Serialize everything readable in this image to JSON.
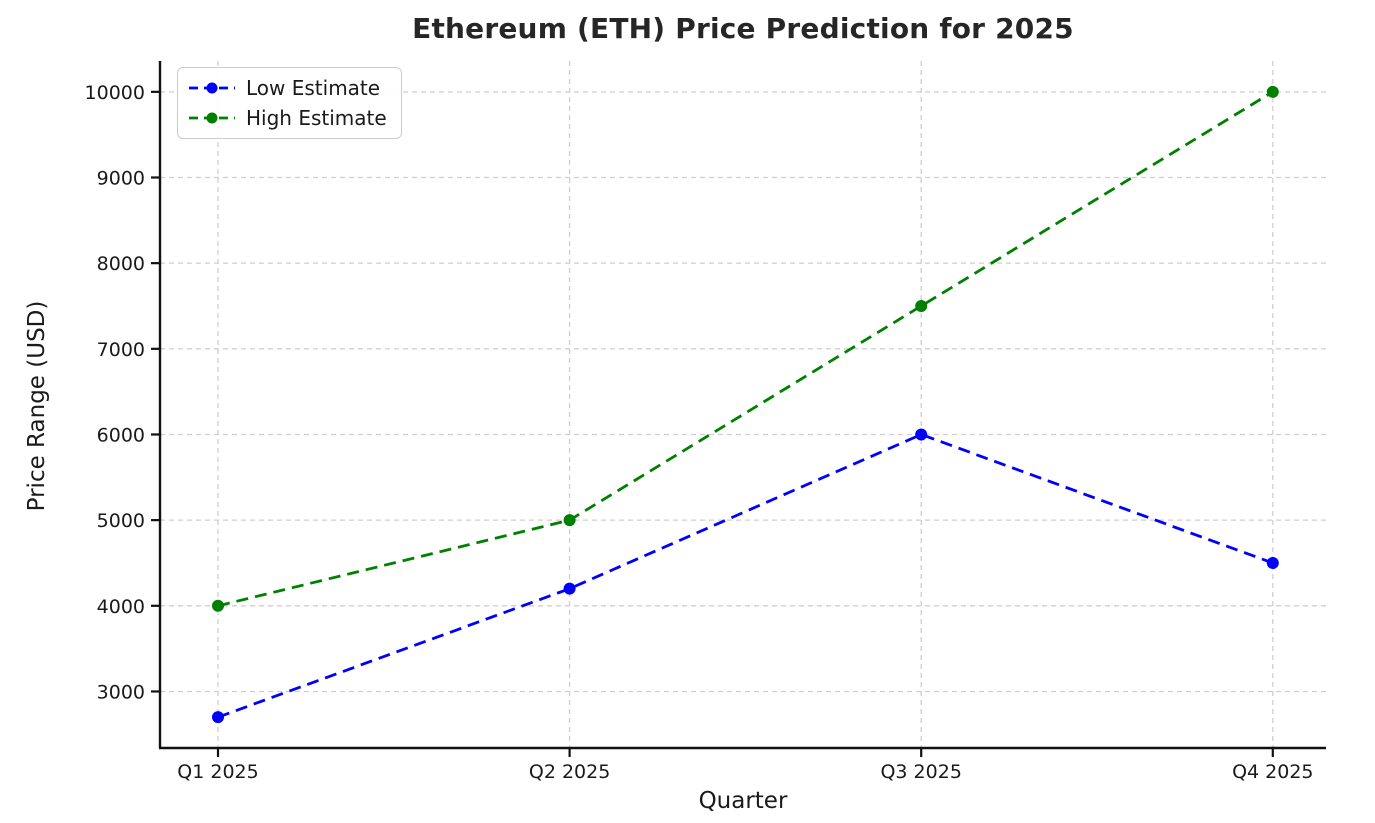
{
  "chart_data": {
    "type": "line",
    "title": "Ethereum (ETH) Price Prediction for 2025",
    "xlabel": "Quarter",
    "ylabel": "Price Range (USD)",
    "categories": [
      "Q1 2025",
      "Q2 2025",
      "Q3 2025",
      "Q4 2025"
    ],
    "series": [
      {
        "name": "Low Estimate",
        "color": "#0000ff",
        "values": [
          2700,
          4200,
          6000,
          4500
        ]
      },
      {
        "name": "High Estimate",
        "color": "#008000",
        "values": [
          4000,
          5000,
          7500,
          10000
        ]
      }
    ],
    "yticks": [
      3000,
      4000,
      5000,
      6000,
      7000,
      8000,
      9000,
      10000
    ],
    "ylim": [
      2340,
      10360
    ],
    "grid": true,
    "line_style": "dashed",
    "marker": "circle",
    "legend_position": "upper-left"
  },
  "colors": {
    "grid": "#cfcfcf",
    "axis": "#111111",
    "tick_text": "#1a1a1a"
  }
}
